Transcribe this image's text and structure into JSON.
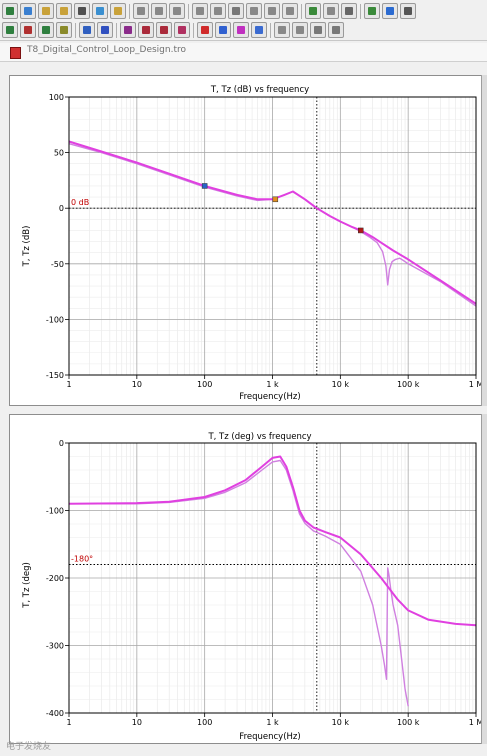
{
  "window": {
    "document_title": "T8_Digital_Control_Loop_Design.tro"
  },
  "toolbar": {
    "row1": [
      "#2f7f3f",
      "#3a7fd0",
      "#c9a23a",
      "#c9a23a",
      "#505050",
      "#3a8fd0",
      "#c9a23a",
      "#888888",
      "#888888",
      "#888888",
      "#888888",
      "#888888",
      "#777777",
      "#888888",
      "#888888",
      "#888888",
      "#3a8a3a",
      "#888888",
      "#666666",
      "#3a8a3a",
      "#2a6ad0",
      "#555555"
    ],
    "row2": [
      "#2f7f3f",
      "#b03030",
      "#2f7f3f",
      "#8a8a2a",
      "#2f5fc0",
      "#3050c0",
      "#8a2a8a",
      "#aa2a3a",
      "#aa2a3a",
      "#b03060",
      "#d02a2a",
      "#3060d0",
      "#c030c0",
      "#3a6ad0",
      "#888888",
      "#888888",
      "#777777",
      "#777777"
    ]
  },
  "watermark": "电子发烧友",
  "chart_data": [
    {
      "type": "line",
      "title": "T, Tz (dB) vs frequency",
      "xlabel": "Frequency(Hz)",
      "ylabel": "T, Tz (dB)",
      "xscale": "log",
      "xlim": [
        1,
        1000000
      ],
      "ylim": [
        -150,
        100
      ],
      "xticks": [
        1,
        10,
        100,
        1000,
        10000,
        100000,
        1000000
      ],
      "xtick_labels": [
        "1",
        "10",
        "100",
        "1 k",
        "10 k",
        "100 k",
        "1 M"
      ],
      "yticks": [
        100,
        50,
        0,
        -50,
        -100,
        -150
      ],
      "ytick_labels": [
        "100",
        "50",
        "0",
        "-50",
        "-100",
        "-150"
      ],
      "grid": true,
      "reference_line": {
        "y": 0,
        "label": "0 dB",
        "color": "#c00000"
      },
      "crossover_marker_x": 4500,
      "markers": [
        {
          "x": 100,
          "y": 20,
          "color": "#2a62c8"
        },
        {
          "x": 1100,
          "y": 8,
          "color": "#e09020"
        },
        {
          "x": 20000,
          "y": -20,
          "color": "#b01818"
        }
      ],
      "series": [
        {
          "color": "#e040e0",
          "x": [
            1,
            3,
            10,
            30,
            100,
            300,
            600,
            1000,
            1500,
            2000,
            3000,
            4500,
            7000,
            10000,
            15000,
            20000,
            30000,
            40000,
            60000,
            100000,
            300000,
            1000000
          ],
          "y": [
            60,
            51,
            41,
            31,
            20,
            12,
            8,
            8,
            12,
            15,
            8,
            0,
            -7,
            -12,
            -17,
            -20,
            -26,
            -31,
            -38,
            -46,
            -65,
            -86
          ]
        },
        {
          "color": "#d080e0",
          "x": [
            1,
            3,
            10,
            30,
            100,
            300,
            600,
            1000,
            1500,
            2000,
            3000,
            4500,
            7000,
            10000,
            15000,
            20000,
            27000,
            35000,
            42000,
            47000,
            50000,
            53000,
            58000,
            65000,
            75000,
            85000,
            100000,
            300000,
            1000000
          ],
          "y": [
            58,
            50,
            40,
            30,
            19,
            11,
            7,
            8,
            12,
            15,
            8,
            0,
            -7,
            -12,
            -17,
            -21,
            -26,
            -31,
            -39,
            -52,
            -69,
            -55,
            -48,
            -46,
            -45,
            -47,
            -50,
            -66,
            -88
          ]
        }
      ]
    },
    {
      "type": "line",
      "title": "T, Tz (deg) vs frequency",
      "xlabel": "Frequency(Hz)",
      "ylabel": "T, Tz (deg)",
      "xscale": "log",
      "xlim": [
        1,
        1000000
      ],
      "ylim": [
        -400,
        0
      ],
      "xticks": [
        1,
        10,
        100,
        1000,
        10000,
        100000,
        1000000
      ],
      "xtick_labels": [
        "1",
        "10",
        "100",
        "1 k",
        "10 k",
        "100 k",
        "1 M"
      ],
      "yticks": [
        0,
        -100,
        -200,
        -300,
        -400
      ],
      "ytick_labels": [
        "0",
        "-100",
        "-200",
        "-300",
        "-400"
      ],
      "grid": true,
      "reference_line": {
        "y": -180,
        "label": "-180°",
        "color": "#c00000"
      },
      "crossover_marker_x": 4500,
      "series": [
        {
          "color": "#e040e0",
          "x": [
            1,
            10,
            30,
            100,
            200,
            400,
            700,
            1000,
            1300,
            1600,
            2000,
            2500,
            3000,
            4000,
            6000,
            10000,
            20000,
            40000,
            70000,
            100000,
            200000,
            500000,
            1000000
          ],
          "y": [
            -90,
            -89,
            -87,
            -80,
            -70,
            -55,
            -35,
            -22,
            -20,
            -35,
            -65,
            -100,
            -115,
            -125,
            -132,
            -140,
            -165,
            -200,
            -232,
            -248,
            -262,
            -268,
            -270
          ]
        },
        {
          "color": "#d080e0",
          "x": [
            1,
            10,
            30,
            100,
            200,
            400,
            700,
            1000,
            1300,
            1600,
            2000,
            2500,
            3000,
            4000,
            6000,
            10000,
            20000,
            30000,
            40000,
            45000,
            48000,
            50000,
            52000,
            55000,
            60000,
            70000,
            80000,
            90000,
            100000
          ],
          "y": [
            -90,
            -90,
            -88,
            -82,
            -73,
            -59,
            -40,
            -28,
            -26,
            -40,
            -70,
            -105,
            -119,
            -130,
            -138,
            -150,
            -190,
            -240,
            -300,
            -330,
            -350,
            -185,
            -195,
            -215,
            -240,
            -270,
            -320,
            -365,
            -390
          ]
        }
      ]
    }
  ]
}
